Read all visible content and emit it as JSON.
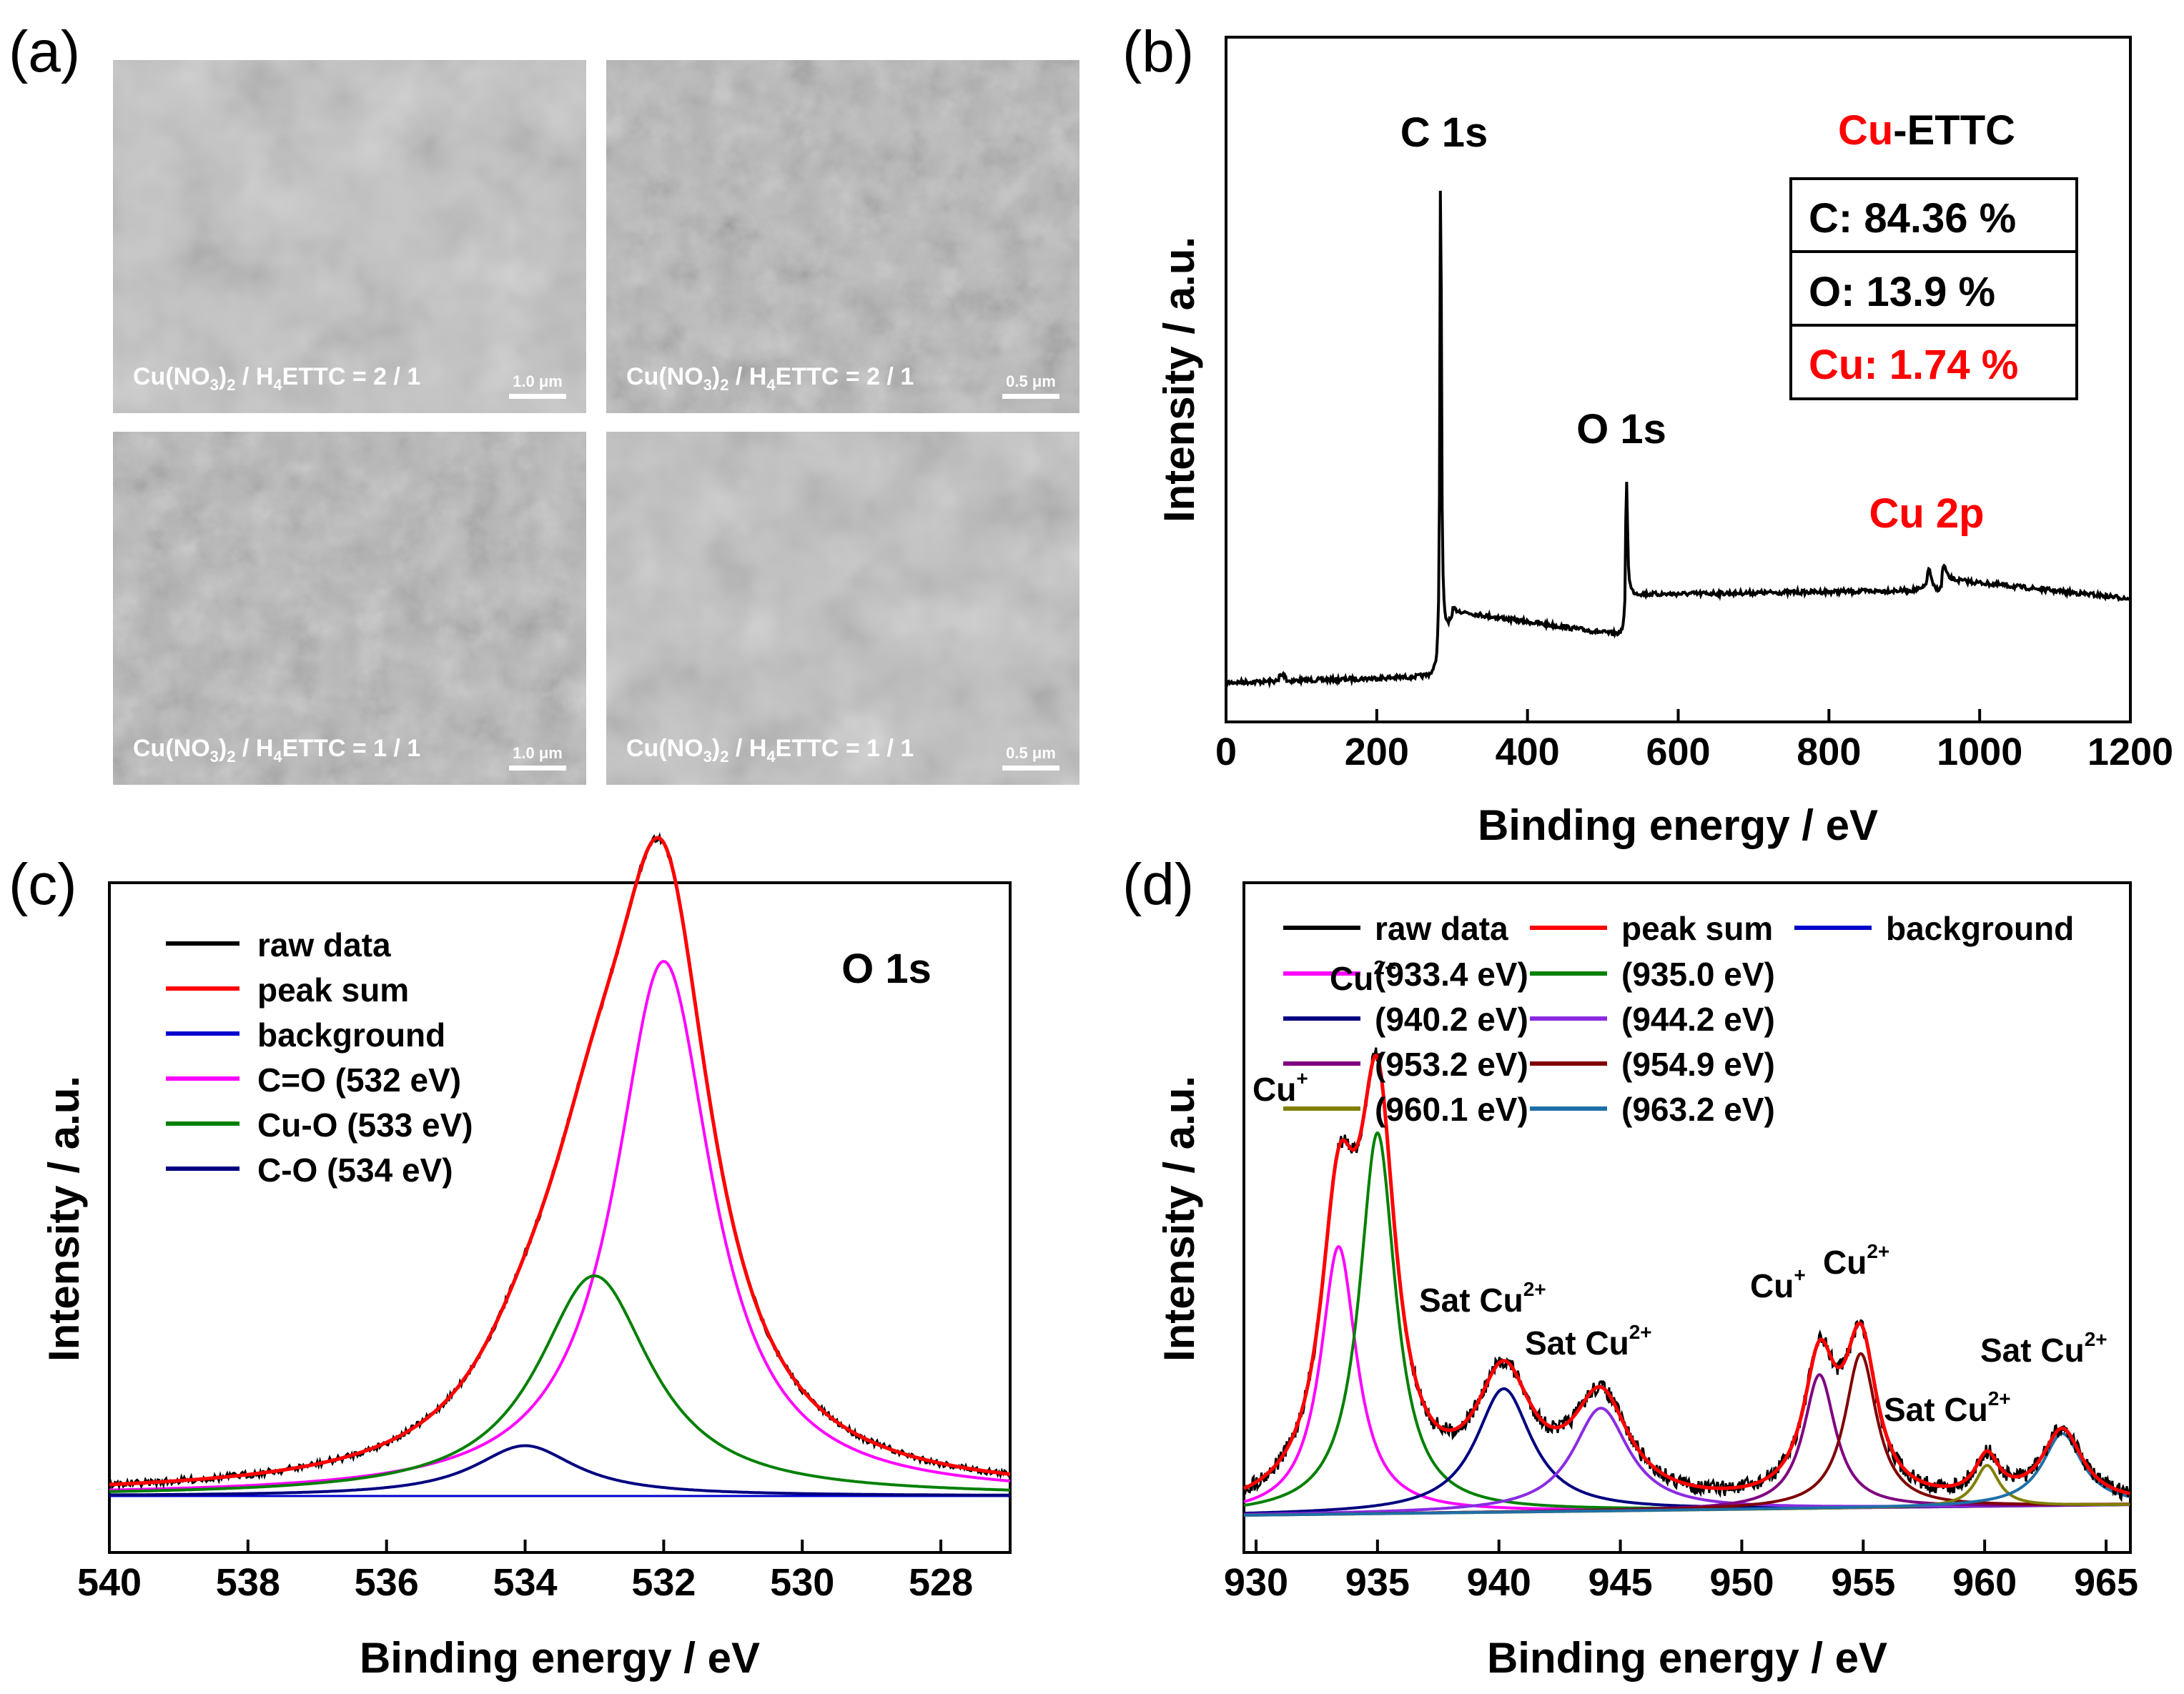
{
  "figure": {
    "panel_labels": [
      "(a)",
      "(b)",
      "(c)",
      "(d)"
    ],
    "tem_images": [
      {
        "ratio_prefix": "Cu(NO",
        "sub1": "3",
        "mid": ")",
        "sub2": "2",
        "sep": " / H",
        "sub3": "4",
        "ratio_suffix": "ETTC = 2 / 1",
        "scale": "1.0 μm"
      },
      {
        "ratio_prefix": "Cu(NO",
        "sub1": "3",
        "mid": ")",
        "sub2": "2",
        "sep": " / H",
        "sub3": "4",
        "ratio_suffix": "ETTC = 2 / 1",
        "scale": "0.5 μm"
      },
      {
        "ratio_prefix": "Cu(NO",
        "sub1": "3",
        "mid": ")",
        "sub2": "2",
        "sep": " / H",
        "sub3": "4",
        "ratio_suffix": "ETTC = 1 / 1",
        "scale": "1.0 μm"
      },
      {
        "ratio_prefix": "Cu(NO",
        "sub1": "3",
        "mid": ")",
        "sub2": "2",
        "sep": " / H",
        "sub3": "4",
        "ratio_suffix": "ETTC = 1 / 1",
        "scale": "0.5 μm"
      }
    ]
  },
  "colors": {
    "raw": "#000000",
    "sum": "#ff0000",
    "background": "#0000cc",
    "magenta": "#ff00ff",
    "green": "#008000",
    "navy": "#000080",
    "purple": "#8a2be2",
    "plum": "#800080",
    "maroon": "#800000",
    "olive": "#808000",
    "teal": "#1e6fa8",
    "red_text": "#ff0000"
  },
  "chart_data": [
    {
      "panel": "b",
      "type": "line",
      "xlabel": "Binding energy / eV",
      "ylabel": "Intensity / a.u.",
      "xlim": [
        0,
        1200
      ],
      "xticks": [
        "0",
        "200",
        "400",
        "600",
        "800",
        "1000",
        "1200"
      ],
      "title_parts": {
        "cu": "Cu",
        "rest": "-ETTC"
      },
      "peak_labels": {
        "c": "C 1s",
        "o": "O 1s",
        "cu": "Cu 2p"
      },
      "composition_table": [
        {
          "label": "C: 84.36 %"
        },
        {
          "label": "O: 13.9 %"
        },
        {
          "label": "Cu: 1.74 %"
        }
      ],
      "peaks": [
        {
          "name": "C 1s",
          "x": 284.8
        },
        {
          "name": "O 1s",
          "x": 531.5
        },
        {
          "name": "Cu 2p",
          "x": 933
        }
      ]
    },
    {
      "panel": "c",
      "type": "line",
      "xlabel": "Binding energy / eV",
      "ylabel": "Intensity / a.u.",
      "xlim": [
        540,
        527
      ],
      "xticks": [
        "540",
        "538",
        "536",
        "534",
        "532",
        "530",
        "528"
      ],
      "annotation": "O 1s",
      "legend": [
        "raw data",
        "peak sum",
        "background",
        "C=O (532 eV)",
        "Cu-O (533 eV)",
        "C-O (534 eV)"
      ],
      "components": [
        {
          "name": "C=O (532 eV)",
          "center": 532.0,
          "amp": 0.85,
          "width": 0.85
        },
        {
          "name": "Cu-O (533 eV)",
          "center": 533.0,
          "amp": 0.35,
          "width": 1.0
        },
        {
          "name": "C-O (534 eV)",
          "center": 534.0,
          "amp": 0.08,
          "width": 0.9
        }
      ]
    },
    {
      "panel": "d",
      "type": "line",
      "xlabel": "Binding energy / eV",
      "ylabel": "Intensity / a.u.",
      "xlim": [
        929.5,
        966
      ],
      "xticks": [
        "930",
        "935",
        "940",
        "945",
        "950",
        "955",
        "960",
        "965"
      ],
      "legend": [
        "raw data",
        "peak sum",
        "background",
        "(933.4 eV)",
        "(935.0 eV)",
        "(940.2 eV)",
        "(944.2 eV)",
        "(953.2 eV)",
        "(954.9 eV)",
        "(960.1 eV)",
        "(963.2 eV)"
      ],
      "annotations": {
        "cu1": "Cu",
        "cu1_sup": "+",
        "cu2": "Cu",
        "cu2_sup": "2+",
        "sat1": "Sat Cu",
        "sat1_sup": "2+",
        "sat2": "Sat Cu",
        "sat2_sup": "2+",
        "cu3": "Cu",
        "cu3_sup": "+",
        "cu4": "Cu",
        "cu4_sup": "2+",
        "sat3": "Sat Cu",
        "sat3_sup": "2+",
        "sat4": "Sat Cu",
        "sat4_sup": "2+"
      },
      "components": [
        {
          "name": "(933.4 eV)",
          "center": 933.4,
          "amp": 0.52,
          "width": 0.9
        },
        {
          "name": "(935.0 eV)",
          "center": 935.0,
          "amp": 0.74,
          "width": 0.9
        },
        {
          "name": "(940.2 eV)",
          "center": 940.2,
          "amp": 0.24,
          "width": 1.4
        },
        {
          "name": "(944.2 eV)",
          "center": 944.2,
          "amp": 0.2,
          "width": 1.4
        },
        {
          "name": "(953.2 eV)",
          "center": 953.2,
          "amp": 0.26,
          "width": 0.8
        },
        {
          "name": "(954.9 eV)",
          "center": 954.9,
          "amp": 0.3,
          "width": 0.8
        },
        {
          "name": "(960.1 eV)",
          "center": 960.1,
          "amp": 0.08,
          "width": 0.6
        },
        {
          "name": "(963.2 eV)",
          "center": 963.2,
          "amp": 0.14,
          "width": 1.0
        }
      ]
    }
  ]
}
